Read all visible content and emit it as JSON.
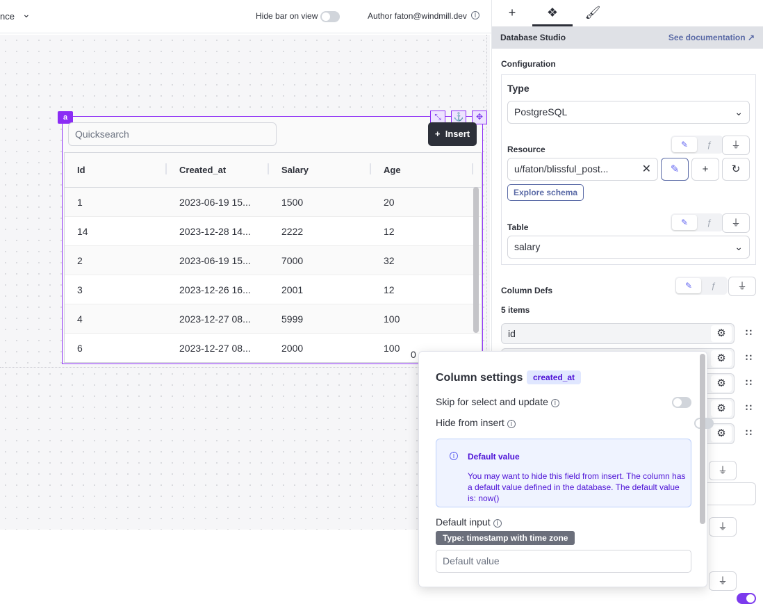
{
  "topbar": {
    "partial_label": "nce",
    "hide_bar_label": "Hide bar on view",
    "author": "Author faton@windmill.dev"
  },
  "component": {
    "id": "a",
    "quicksearch_placeholder": "Quicksearch",
    "insert_label": "Insert",
    "columns": [
      "Id",
      "Created_at",
      "Salary",
      "Age"
    ],
    "rows": [
      [
        "1",
        "2023-06-19 15...",
        "1500",
        "20"
      ],
      [
        "14",
        "2023-12-28 14...",
        "2222",
        "12"
      ],
      [
        "2",
        "2023-06-19 15...",
        "7000",
        "32"
      ],
      [
        "3",
        "2023-12-26 16...",
        "2001",
        "12"
      ],
      [
        "4",
        "2023-12-27 08...",
        "5999",
        "100"
      ],
      [
        "6",
        "2023-12-27 08...",
        "2000",
        "100"
      ]
    ],
    "footer_partial": "0"
  },
  "panel": {
    "tabs": [
      "plus-icon",
      "components-icon",
      "brush-icon"
    ],
    "title": "Database Studio",
    "doc_link": "See documentation",
    "configuration": "Configuration",
    "type_label": "Type",
    "type_value": "PostgreSQL",
    "resource_label": "Resource",
    "resource_value": "u/faton/blissful_post...",
    "explore_schema": "Explore schema",
    "table_label": "Table",
    "table_value": "salary",
    "column_defs_label": "Column Defs",
    "items_count": "5 items",
    "items": [
      "id"
    ]
  },
  "popover": {
    "title": "Column settings",
    "column": "created_at",
    "skip_label": "Skip for select and update",
    "skip_on": false,
    "hide_label": "Hide from insert",
    "hide_on": false,
    "alert_title": "Default value",
    "alert_text": "You may want to hide this field from insert. The column has a default value defined in the database. The default value is: now()",
    "default_input_label": "Default input",
    "type_badge": "Type: timestamp with time zone",
    "default_placeholder": "Default value"
  },
  "colors": {
    "accent": "#8b2cf5",
    "toggle_on": "#7c3aed",
    "dark_button": "#2d3039"
  }
}
